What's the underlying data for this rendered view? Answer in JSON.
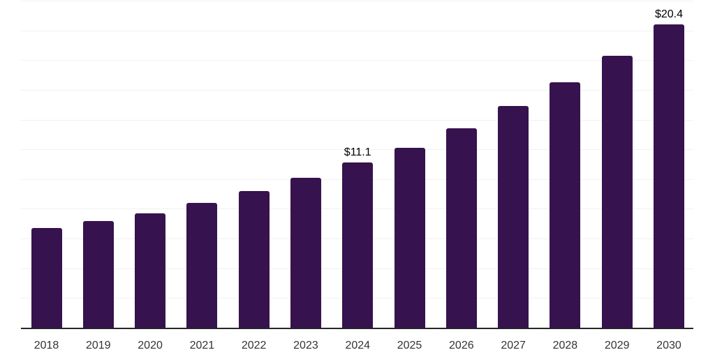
{
  "chart_data": {
    "type": "bar",
    "categories": [
      "2018",
      "2019",
      "2020",
      "2021",
      "2022",
      "2023",
      "2024",
      "2025",
      "2026",
      "2027",
      "2028",
      "2029",
      "2030"
    ],
    "values": [
      6.7,
      7.2,
      7.7,
      8.4,
      9.2,
      10.1,
      11.1,
      12.1,
      13.4,
      14.9,
      16.5,
      18.3,
      20.4
    ],
    "unit_prefix": "$",
    "labeled_points": [
      {
        "category": "2024",
        "text": "$11.1"
      },
      {
        "category": "2030",
        "text": "$20.4"
      }
    ],
    "ylim": [
      0,
      22
    ],
    "grid_step": 2,
    "grid": "horizontal-only",
    "legend": "none",
    "y_axis_labels_visible": false,
    "colors": {
      "bar": "#36124E",
      "axis_line": "#262626",
      "gridline": "#F1F1F1",
      "tick_label": "#333333",
      "data_label": "#000000",
      "background": "#FFFFFF"
    }
  }
}
